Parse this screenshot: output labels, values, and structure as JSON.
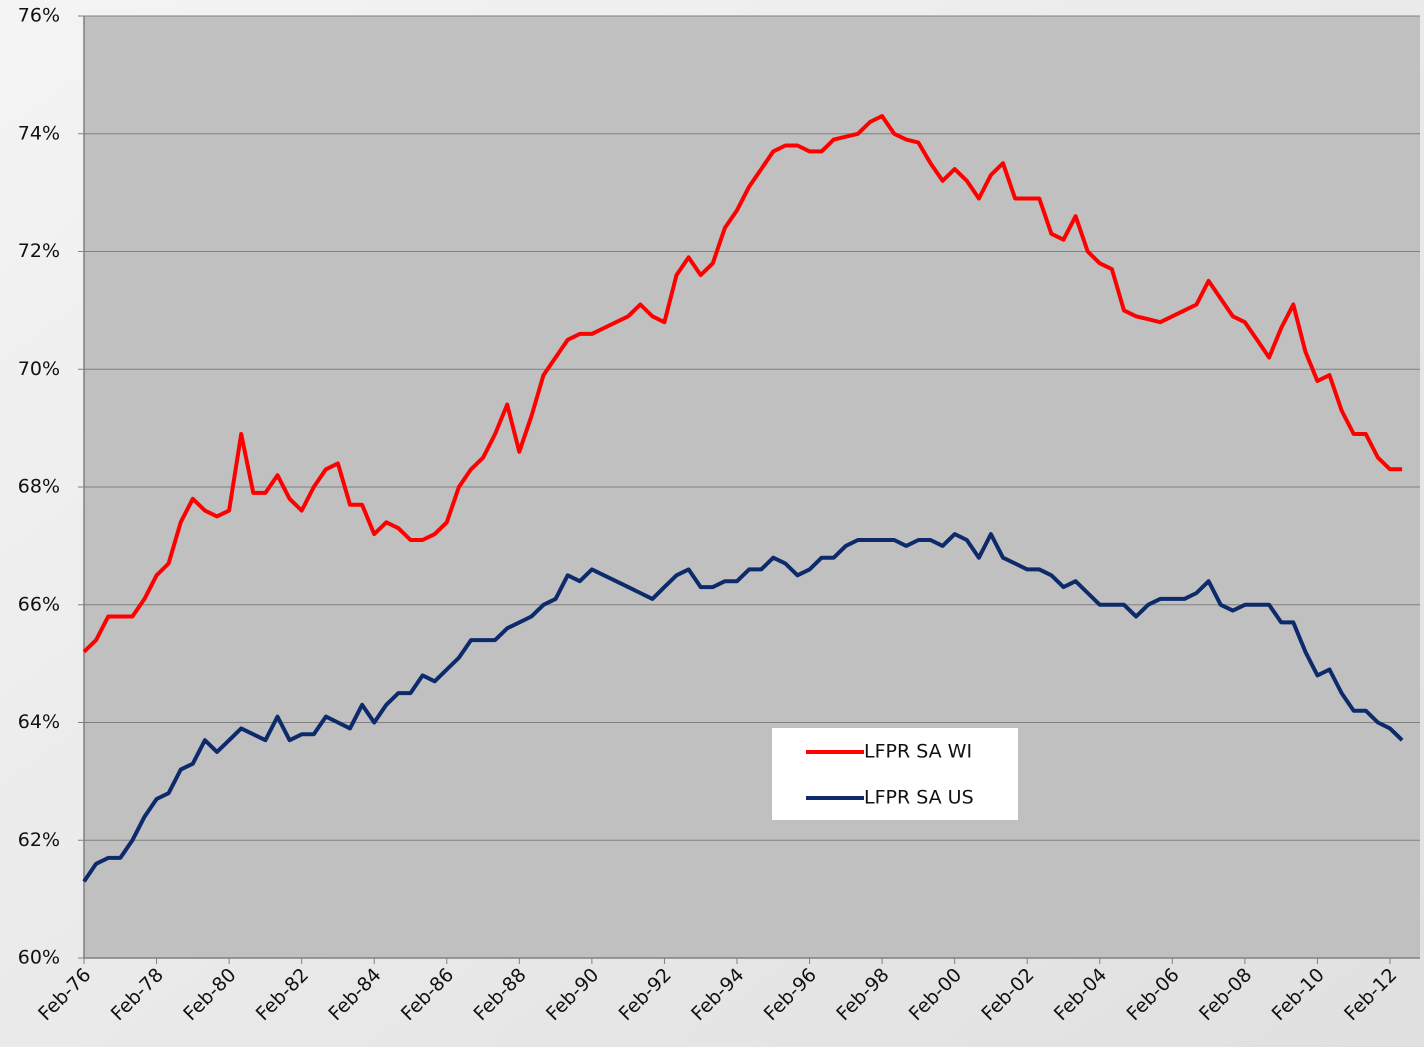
{
  "chart_data": {
    "type": "line",
    "categories": [
      "Feb-76",
      null,
      null,
      null,
      null,
      null,
      "Feb-78",
      null,
      null,
      null,
      null,
      null,
      "Feb-80",
      null,
      null,
      null,
      null,
      null,
      "Feb-82",
      null,
      null,
      null,
      null,
      null,
      "Feb-84",
      null,
      null,
      null,
      null,
      null,
      "Feb-86",
      null,
      null,
      null,
      null,
      null,
      "Feb-88",
      null,
      null,
      null,
      null,
      null,
      "Feb-90",
      null,
      null,
      null,
      null,
      null,
      "Feb-92",
      null,
      null,
      null,
      null,
      null,
      "Feb-94",
      null,
      null,
      null,
      null,
      null,
      "Feb-96",
      null,
      null,
      null,
      null,
      null,
      "Feb-98",
      null,
      null,
      null,
      null,
      null,
      "Feb-00",
      null,
      null,
      null,
      null,
      null,
      "Feb-02",
      null,
      null,
      null,
      null,
      null,
      "Feb-04",
      null,
      null,
      null,
      null,
      null,
      "Feb-06",
      null,
      null,
      null,
      null,
      null,
      "Feb-08",
      null,
      null,
      null,
      null,
      null,
      "Feb-10",
      null,
      null,
      null,
      null,
      null,
      "Feb-12",
      null
    ],
    "series": [
      {
        "name": "LFPR SA WI",
        "color": "#ff0000",
        "values": [
          65.2,
          65.4,
          65.8,
          65.8,
          65.8,
          66.1,
          66.5,
          66.7,
          67.4,
          67.8,
          67.6,
          67.5,
          67.6,
          68.9,
          67.9,
          67.9,
          68.2,
          67.8,
          67.6,
          68.0,
          68.3,
          68.4,
          67.7,
          67.7,
          67.2,
          67.4,
          67.3,
          67.1,
          67.1,
          67.2,
          67.4,
          68.0,
          68.3,
          68.5,
          68.9,
          69.4,
          68.6,
          69.2,
          69.9,
          70.2,
          70.5,
          70.6,
          70.6,
          70.7,
          70.8,
          70.9,
          71.1,
          70.9,
          70.8,
          71.6,
          71.9,
          71.6,
          71.8,
          72.4,
          72.7,
          73.1,
          73.4,
          73.7,
          73.8,
          73.8,
          73.7,
          73.7,
          73.9,
          73.95,
          74.0,
          74.2,
          74.3,
          74.0,
          73.9,
          73.85,
          73.5,
          73.2,
          73.4,
          73.2,
          72.9,
          73.3,
          73.5,
          72.9,
          72.9,
          72.9,
          72.3,
          72.2,
          72.6,
          72.0,
          71.8,
          71.7,
          71.0,
          70.9,
          70.85,
          70.8,
          70.9,
          71.0,
          71.1,
          71.5,
          71.2,
          70.9,
          70.8,
          70.5,
          70.2,
          70.7,
          71.1,
          70.3,
          69.8,
          69.9,
          69.3,
          68.9,
          68.9,
          68.5,
          68.3,
          68.3
        ]
      },
      {
        "name": "LFPR SA US",
        "color": "#0d2a6b",
        "values": [
          61.3,
          61.6,
          61.7,
          61.7,
          62.0,
          62.4,
          62.7,
          62.8,
          63.2,
          63.3,
          63.7,
          63.5,
          63.7,
          63.9,
          63.8,
          63.7,
          64.1,
          63.7,
          63.8,
          63.8,
          64.1,
          64.0,
          63.9,
          64.3,
          64.0,
          64.3,
          64.5,
          64.5,
          64.8,
          64.7,
          64.9,
          65.1,
          65.4,
          65.4,
          65.4,
          65.6,
          65.7,
          65.8,
          66.0,
          66.1,
          66.5,
          66.4,
          66.6,
          66.5,
          66.4,
          66.3,
          66.2,
          66.1,
          66.3,
          66.5,
          66.6,
          66.3,
          66.3,
          66.4,
          66.4,
          66.6,
          66.6,
          66.8,
          66.7,
          66.5,
          66.6,
          66.8,
          66.8,
          67.0,
          67.1,
          67.1,
          67.1,
          67.1,
          67.0,
          67.1,
          67.1,
          67.0,
          67.2,
          67.1,
          66.8,
          67.2,
          66.8,
          66.7,
          66.6,
          66.6,
          66.5,
          66.3,
          66.4,
          66.2,
          66.0,
          66.0,
          66.0,
          65.8,
          66.0,
          66.1,
          66.1,
          66.1,
          66.2,
          66.4,
          66.0,
          65.9,
          66.0,
          66.0,
          66.0,
          65.7,
          65.7,
          65.2,
          64.8,
          64.9,
          64.5,
          64.2,
          64.2,
          64.0,
          63.9,
          63.7
        ]
      }
    ],
    "ylim": [
      60,
      76
    ],
    "yticks": [
      {
        "value": 60,
        "label": "60%"
      },
      {
        "value": 62,
        "label": "62%"
      },
      {
        "value": 64,
        "label": "64%"
      },
      {
        "value": 66,
        "label": "66%"
      },
      {
        "value": 68,
        "label": "68%"
      },
      {
        "value": 70,
        "label": "70%"
      },
      {
        "value": 72,
        "label": "72%"
      },
      {
        "value": 74,
        "label": "74%"
      },
      {
        "value": 76,
        "label": "76%"
      }
    ],
    "grid": true
  }
}
